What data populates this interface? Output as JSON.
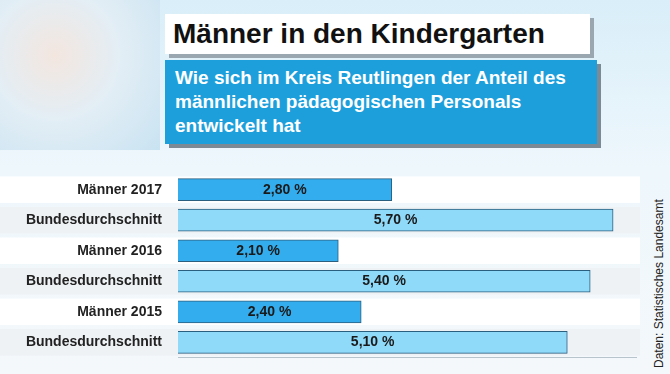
{
  "chart_data": {
    "type": "bar",
    "orientation": "horizontal",
    "title": "Männer in den Kindergarten",
    "subtitle": "Wie sich im Kreis Reutlingen der Anteil des männlichen pädagogischen Personals entwickelt hat",
    "annotations": [
      "Daten: Statistisches Landesamt"
    ],
    "categories": [
      "Männer 2017",
      "Bundesdurchschnitt",
      "Männer 2016",
      "Bundesdurchschnitt",
      "Männer 2015",
      "Bundesdurchschnitt"
    ],
    "values": [
      2.8,
      5.7,
      2.1,
      5.4,
      2.4,
      5.1
    ],
    "value_labels": [
      "2,80 %",
      "5,70 %",
      "2,10 %",
      "5,40 %",
      "2,40 %",
      "5,10 %"
    ],
    "colors": [
      "#34adee",
      "#8fd9f9",
      "#34adee",
      "#8fd9f9",
      "#34adee",
      "#8fd9f9"
    ],
    "xlim": [
      0,
      6
    ],
    "grid": false,
    "data_labels": true,
    "tick_labels": "y"
  }
}
